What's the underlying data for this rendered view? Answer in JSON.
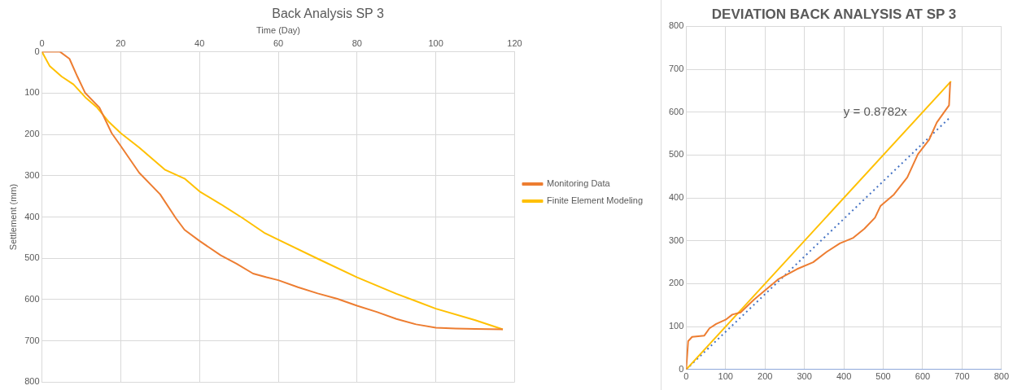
{
  "chart_data": [
    {
      "type": "line",
      "title": "Back Analysis SP 3",
      "xlabel": "Time (Day)",
      "ylabel": "Settlement (mm)",
      "xlim": [
        0,
        120
      ],
      "xticks": [
        0,
        20,
        40,
        60,
        80,
        100,
        120
      ],
      "ylim": [
        800,
        0
      ],
      "yticks": [
        0,
        100,
        200,
        300,
        400,
        500,
        600,
        700,
        800
      ],
      "grid": true,
      "legend": "right",
      "marker": "none",
      "series": [
        {
          "name": "Monitoring Data",
          "color": "#ed7d31",
          "x": [
            0,
            4.6,
            7,
            9,
            11,
            14.6,
            17.7,
            20,
            24.7,
            30,
            34,
            36.2,
            40,
            45.4,
            49.4,
            53.6,
            57,
            60,
            65,
            70,
            75,
            80,
            85,
            90,
            95,
            100,
            105,
            110,
            117
          ],
          "values": [
            0,
            0,
            17,
            60,
            100,
            135,
            197,
            228,
            293,
            345,
            403,
            431,
            458,
            493,
            513,
            537,
            546,
            553,
            570,
            585,
            598,
            615,
            630,
            647,
            660,
            668,
            670,
            671,
            672
          ]
        },
        {
          "name": "Finite Element Modeling",
          "color": "#ffc000",
          "x": [
            0,
            2,
            5,
            8,
            11,
            14,
            17,
            20,
            24.7,
            31.3,
            36.2,
            40,
            45.4,
            51,
            56.4,
            60,
            70,
            80,
            90,
            100,
            110,
            117
          ],
          "values": [
            0,
            35,
            60,
            79,
            110,
            135,
            170,
            197,
            232,
            286,
            307,
            338,
            369,
            403,
            438,
            455,
            501,
            546,
            586,
            622,
            650,
            672
          ]
        }
      ]
    },
    {
      "type": "line",
      "title": "DEVIATION BACK ANALYSIS AT SP 3",
      "xlim": [
        0,
        800
      ],
      "xticks": [
        0,
        100,
        200,
        300,
        400,
        500,
        600,
        700,
        800
      ],
      "ylim": [
        0,
        800
      ],
      "yticks": [
        0,
        100,
        200,
        300,
        400,
        500,
        600,
        700,
        800
      ],
      "grid": true,
      "marker": "none",
      "annotations": [
        "y = 0.8782x"
      ],
      "series": [
        {
          "color": "#ed7d31",
          "x": [
            0,
            5,
            15,
            46,
            59,
            76,
            100,
            117,
            138,
            172,
            233,
            281,
            322,
            356,
            390,
            424,
            452,
            479,
            493,
            527,
            561,
            588,
            616,
            636,
            657,
            667,
            670
          ],
          "values": [
            0,
            66,
            76,
            79,
            96,
            106,
            116,
            128,
            133,
            163,
            210,
            234,
            250,
            274,
            294,
            307,
            328,
            354,
            381,
            408,
            448,
            502,
            535,
            576,
            603,
            616,
            670
          ]
        },
        {
          "color": "#ffc000",
          "x": [
            0,
            130,
            672
          ],
          "values": [
            0,
            130,
            672
          ]
        },
        {
          "color": "#4472c4",
          "line_style": "dotted",
          "x": [
            0,
            672
          ],
          "values": [
            0,
            590
          ]
        }
      ]
    }
  ]
}
